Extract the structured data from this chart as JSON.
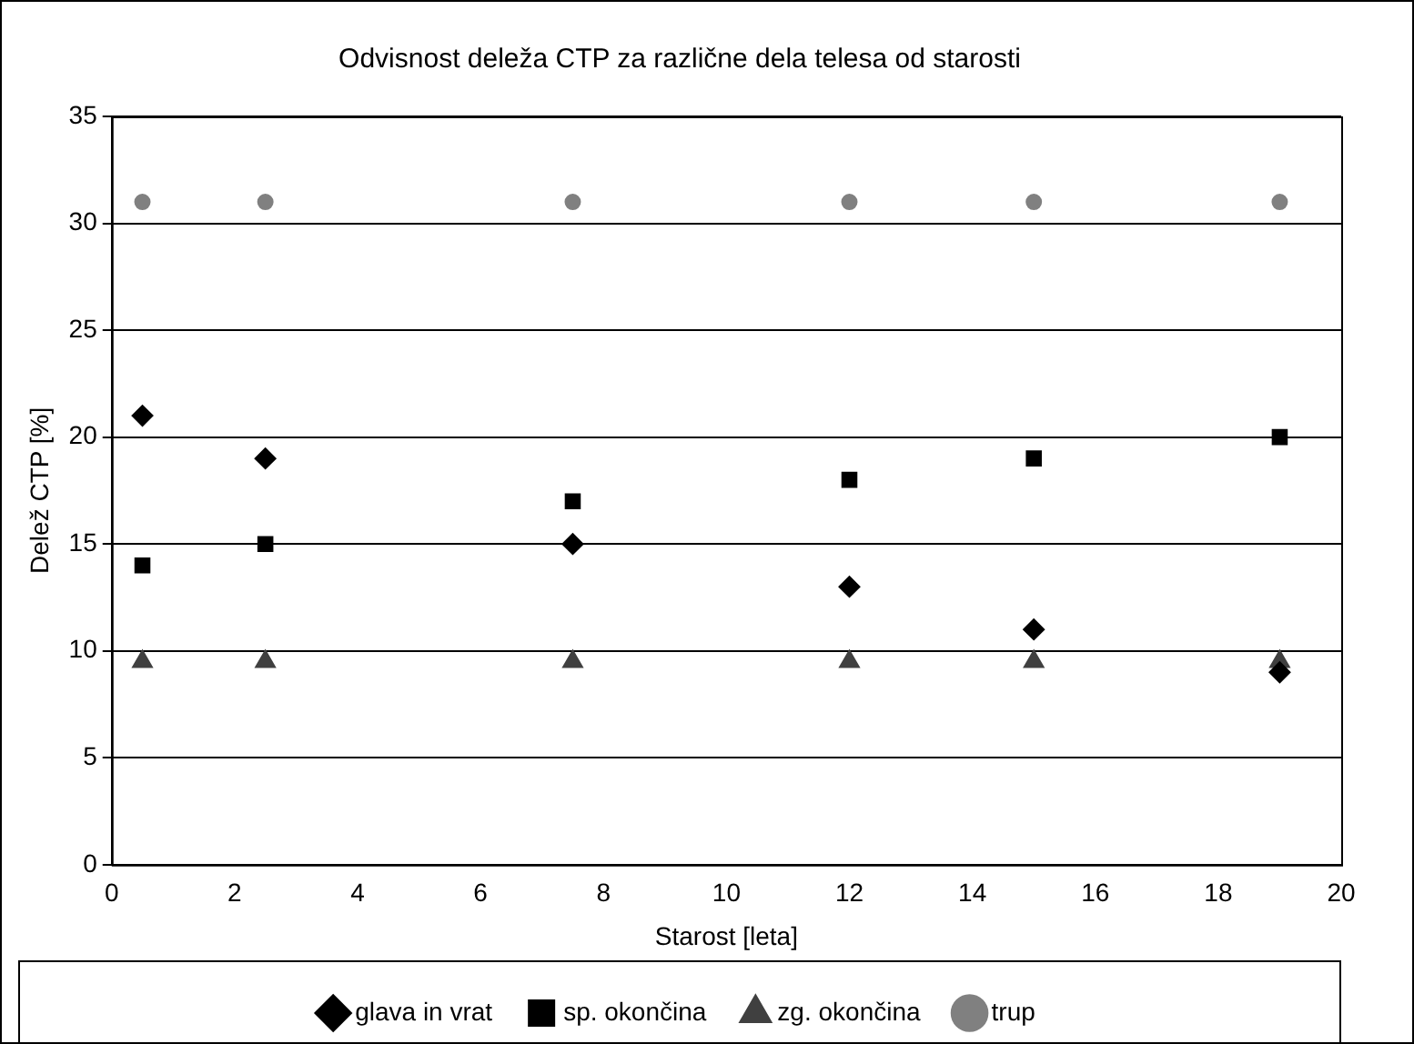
{
  "chart_data": {
    "type": "scatter",
    "title": "Odvisnost deleža CTP za različne dela telesa od starosti",
    "xlabel": "Starost [leta]",
    "ylabel": "Delež CTP [%]",
    "x": [
      0.5,
      2.5,
      7.5,
      12,
      15,
      19
    ],
    "series": [
      {
        "name": "glava in vrat",
        "color": "#000000",
        "marker": "diamond",
        "values": [
          21,
          19,
          15,
          13,
          11,
          9
        ]
      },
      {
        "name": "sp. okončina",
        "color": "#000000",
        "marker": "square",
        "values": [
          14,
          15,
          17,
          18,
          19,
          20
        ]
      },
      {
        "name": "zg. okončina",
        "color": "#404040",
        "marker": "triangle",
        "values": [
          9.5,
          9.5,
          9.5,
          9.5,
          9.5,
          9.5
        ]
      },
      {
        "name": "trup",
        "color": "#808080",
        "marker": "circle",
        "values": [
          31,
          31,
          31,
          31,
          31,
          31
        ]
      }
    ],
    "xlim": [
      0,
      20
    ],
    "xticks": [
      0,
      2,
      4,
      6,
      8,
      10,
      12,
      14,
      16,
      18,
      20
    ],
    "ylim": [
      0,
      35
    ],
    "yticks": [
      0,
      5,
      10,
      15,
      20,
      25,
      30,
      35
    ],
    "grid": "y",
    "legend": "bottom"
  }
}
